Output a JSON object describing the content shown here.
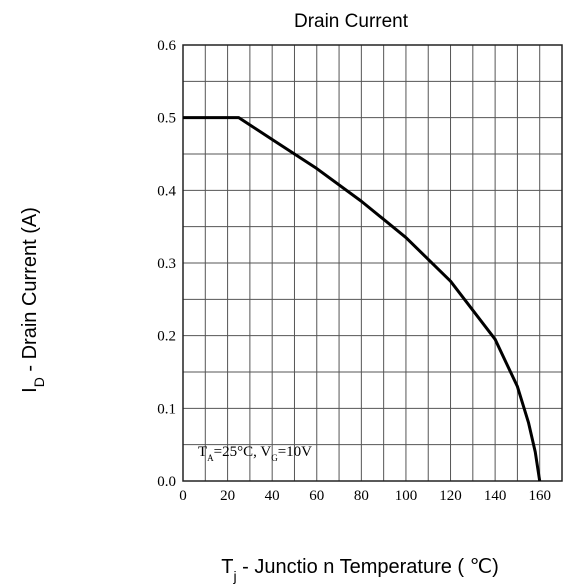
{
  "chart_data": {
    "type": "line",
    "title": "Drain Current",
    "xlabel_parts": [
      {
        "text": "T"
      },
      {
        "text": "j",
        "sub": true
      },
      {
        "text": " - Junctio n Temperature ( ℃)"
      }
    ],
    "ylabel_parts": [
      {
        "text": "I"
      },
      {
        "text": "D",
        "sub": true
      },
      {
        "text": " - Drain Current (A)"
      }
    ],
    "annotation_parts": [
      {
        "text": "T"
      },
      {
        "text": "A",
        "sub": true
      },
      {
        "text": "=25°C, V"
      },
      {
        "text": "G",
        "sub": true
      },
      {
        "text": "=10V"
      }
    ],
    "x": [
      0,
      25,
      40,
      60,
      80,
      100,
      120,
      140,
      150,
      155,
      158,
      160
    ],
    "series": [
      {
        "color": "#000000",
        "values": [
          0.5,
          0.5,
          0.47,
          0.43,
          0.385,
          0.335,
          0.275,
          0.195,
          0.13,
          0.08,
          0.04,
          0
        ]
      }
    ],
    "xlim": [
      0,
      170
    ],
    "ylim": [
      0,
      0.6
    ],
    "xticks": [
      0,
      20,
      40,
      60,
      80,
      100,
      120,
      140,
      160
    ],
    "yticks": [
      {
        "value": 0,
        "label": "0.0"
      },
      0.1,
      0.2,
      0.3,
      0.4,
      0.5,
      0.6
    ],
    "x_grid_step": 10,
    "y_grid_step": 0.05,
    "grid": true
  }
}
